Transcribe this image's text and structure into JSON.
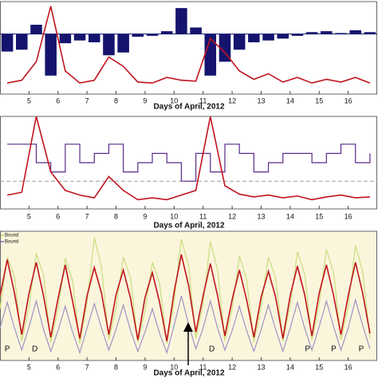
{
  "chart_data": [
    {
      "type": "combo",
      "x_label": "Days of April, 2012",
      "xlim": [
        4,
        17
      ],
      "ylim": [
        0,
        10
      ],
      "bar_base": 6.5,
      "xticks": [
        5,
        6,
        7,
        8,
        9,
        10,
        11,
        12,
        13,
        14,
        15,
        16
      ],
      "x": [
        4.25,
        4.75,
        5.25,
        5.75,
        6.25,
        6.75,
        7.25,
        7.75,
        8.25,
        8.75,
        9.25,
        9.75,
        10.25,
        10.75,
        11.25,
        11.75,
        12.25,
        12.75,
        13.25,
        13.75,
        14.25,
        14.75,
        15.25,
        15.75,
        16.25,
        16.75
      ],
      "series": [
        {
          "kind": "bar",
          "color": "#14146e",
          "values": [
            4.6,
            4.8,
            7.5,
            2.0,
            5.5,
            5.8,
            5.6,
            4.2,
            4.5,
            6.2,
            6.3,
            6.8,
            9.3,
            7.2,
            2.0,
            3.5,
            4.8,
            5.6,
            5.8,
            6.0,
            6.3,
            6.7,
            6.8,
            6.6,
            6.9,
            6.7
          ]
        },
        {
          "kind": "line",
          "color": "#c0141e",
          "values": [
            1.2,
            1.5,
            3.5,
            9.5,
            2.5,
            1.2,
            1.5,
            4.0,
            3.0,
            1.3,
            1.2,
            1.8,
            1.5,
            1.4,
            6.0,
            4.5,
            2.5,
            1.6,
            2.2,
            1.3,
            1.8,
            1.2,
            1.6,
            1.3,
            1.8,
            1.2
          ]
        }
      ]
    },
    {
      "type": "line",
      "x_label": "Days of April, 2012",
      "xlim": [
        4,
        17
      ],
      "ylim": [
        0,
        10
      ],
      "reference_line": 3,
      "xticks": [
        5,
        6,
        7,
        8,
        9,
        10,
        11,
        12,
        13,
        14,
        15,
        16
      ],
      "x": [
        4.25,
        4.75,
        5.25,
        5.75,
        6.25,
        6.75,
        7.25,
        7.75,
        8.25,
        8.75,
        9.25,
        9.75,
        10.25,
        10.75,
        11.25,
        11.75,
        12.25,
        12.75,
        13.25,
        13.75,
        14.25,
        14.75,
        15.25,
        15.75,
        16.25,
        16.75
      ],
      "series": [
        {
          "step": true,
          "color": "#5a2a8a",
          "values": [
            7,
            7,
            5,
            4,
            7,
            5,
            6,
            7,
            4,
            5,
            6,
            5,
            3,
            6,
            4,
            7,
            6,
            4,
            5,
            6,
            6,
            5,
            6,
            7,
            5,
            6
          ]
        },
        {
          "step": false,
          "color": "#c0141e",
          "values": [
            1.5,
            1.8,
            10,
            4,
            2,
            1.5,
            1.2,
            3.5,
            2,
            1,
            1.2,
            1,
            1.5,
            2,
            10,
            2.5,
            1.6,
            1.3,
            1.5,
            1.2,
            1.4,
            1,
            1.3,
            1.5,
            1.2,
            1.3
          ]
        }
      ]
    },
    {
      "type": "line",
      "x_label": "Days of April, 2012",
      "xlim": [
        4,
        17
      ],
      "ylim": [
        0,
        10
      ],
      "background": "#fbf5dc",
      "legend": "upper left",
      "xticks": [
        5,
        6,
        7,
        8,
        9,
        10,
        11,
        12,
        13,
        14,
        15,
        16
      ],
      "x": [
        4,
        4.25,
        4.5,
        4.75,
        5,
        5.25,
        5.5,
        5.75,
        6,
        6.25,
        6.5,
        6.75,
        7,
        7.25,
        7.5,
        7.75,
        8,
        8.25,
        8.5,
        8.75,
        9,
        9.25,
        9.5,
        9.75,
        10,
        10.25,
        10.5,
        10.75,
        11,
        11.25,
        11.5,
        11.75,
        12,
        12.25,
        12.5,
        12.75,
        13,
        13.25,
        13.5,
        13.75,
        14,
        14.25,
        14.5,
        14.75,
        15,
        15.25,
        15.5,
        15.75,
        16,
        16.25,
        16.5,
        16.75
      ],
      "series": [
        {
          "name": "Bound",
          "color": "#c9de7e",
          "values": [
            4.0,
            8.0,
            6.5,
            1.5,
            4.2,
            8.3,
            6.6,
            1.4,
            4.0,
            7.9,
            6.2,
            1.3,
            4.5,
            9.5,
            7.2,
            1.6,
            4.1,
            8.0,
            6.4,
            1.4,
            3.9,
            7.6,
            6.0,
            1.3,
            4.6,
            9.4,
            7.3,
            1.7,
            4.4,
            9.2,
            7.0,
            1.5,
            4.0,
            8.1,
            6.3,
            1.4,
            4.2,
            8.0,
            6.4,
            1.5,
            4.3,
            8.4,
            6.7,
            1.6,
            4.4,
            8.6,
            6.8,
            1.6,
            4.2,
            8.9,
            6.9,
            1.7
          ]
        },
        {
          "name": "Bound",
          "color": "#9c94c4",
          "values": [
            2.5,
            4.5,
            2.5,
            0.8,
            2.6,
            4.6,
            2.4,
            0.7,
            2.3,
            4.2,
            2.2,
            0.6,
            2.5,
            4.4,
            2.5,
            0.8,
            2.4,
            4.3,
            2.3,
            0.7,
            2.2,
            4.0,
            2.1,
            0.6,
            2.7,
            5.0,
            2.8,
            0.9,
            2.5,
            4.6,
            2.5,
            0.8,
            2.3,
            4.2,
            2.3,
            0.7,
            2.4,
            4.3,
            2.4,
            0.7,
            2.5,
            4.5,
            2.5,
            0.8,
            2.6,
            4.6,
            2.6,
            0.8,
            2.5,
            4.7,
            2.7,
            0.9
          ]
        },
        {
          "color": "#c0141e",
          "values": [
            5.0,
            7.8,
            5.2,
            2.0,
            5.2,
            7.6,
            5.0,
            1.8,
            4.8,
            7.4,
            4.6,
            1.7,
            5.0,
            7.2,
            5.2,
            2.0,
            5.1,
            7.0,
            4.8,
            1.6,
            4.9,
            6.8,
            4.5,
            1.5,
            5.3,
            8.2,
            5.8,
            2.2,
            5.0,
            7.5,
            5.0,
            1.9,
            4.7,
            7.0,
            4.7,
            1.8,
            4.9,
            6.9,
            4.9,
            1.7,
            5.0,
            7.3,
            5.1,
            1.9,
            5.2,
            7.4,
            5.0,
            2.0,
            5.0,
            7.6,
            5.2,
            2.1
          ]
        }
      ],
      "annotations": [
        {
          "text": "P",
          "x": 4.25
        },
        {
          "text": "D",
          "x": 5.2
        },
        {
          "text": "D",
          "x": 11.3
        },
        {
          "text": "P",
          "x": 14.6
        },
        {
          "text": "P",
          "x": 15.5
        },
        {
          "text": "P",
          "x": 16.45
        }
      ]
    }
  ]
}
